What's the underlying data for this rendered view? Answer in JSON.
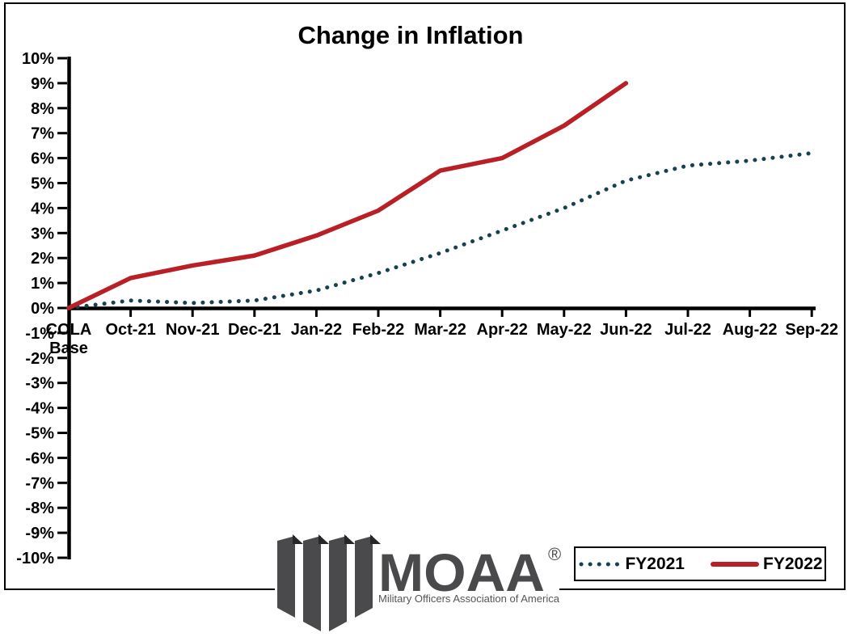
{
  "title": "Change in Inflation",
  "colors": {
    "fy2021_line": "#17414d",
    "fy2022_line": "#b92025",
    "axis": "#000000",
    "background": "#ffffff",
    "logo_gray": "#4a4a4c"
  },
  "chart_data": {
    "type": "line",
    "title": "Change in Inflation",
    "categories": [
      "COLA Base",
      "Oct-21",
      "Nov-21",
      "Dec-21",
      "Jan-22",
      "Feb-22",
      "Mar-22",
      "Apr-22",
      "May-22",
      "Jun-22",
      "Jul-22",
      "Aug-22",
      "Sep-22"
    ],
    "series": [
      {
        "name": "FY2021",
        "style": "dotted",
        "color": "#17414d",
        "values": [
          0,
          0.3,
          0.2,
          0.3,
          0.7,
          1.4,
          2.2,
          3.1,
          4.0,
          5.1,
          5.7,
          5.9,
          6.2
        ]
      },
      {
        "name": "FY2022",
        "style": "solid",
        "color": "#b92025",
        "values": [
          0,
          1.2,
          1.7,
          2.1,
          2.9,
          3.9,
          5.5,
          6.0,
          7.3,
          9.0
        ]
      }
    ],
    "xlabel": "",
    "ylabel": "",
    "ylim": [
      -10,
      10
    ],
    "ytick_step": 1,
    "ytick_format": "percent",
    "ytick_labels": [
      "10%",
      "9%",
      "8%",
      "7%",
      "6%",
      "5%",
      "4%",
      "3%",
      "2%",
      "1%",
      "0%",
      "-1%",
      "-2%",
      "-3%",
      "-4%",
      "-5%",
      "-6%",
      "-7%",
      "-8%",
      "-9%",
      "-10%"
    ],
    "grid": false,
    "legend_position": "bottom-right"
  },
  "legend": {
    "fy2021_label": "FY2021",
    "fy2022_label": "FY2022"
  },
  "logo": {
    "name": "MOAA",
    "registered": "®",
    "tagline": "Military Officers Association of America"
  }
}
